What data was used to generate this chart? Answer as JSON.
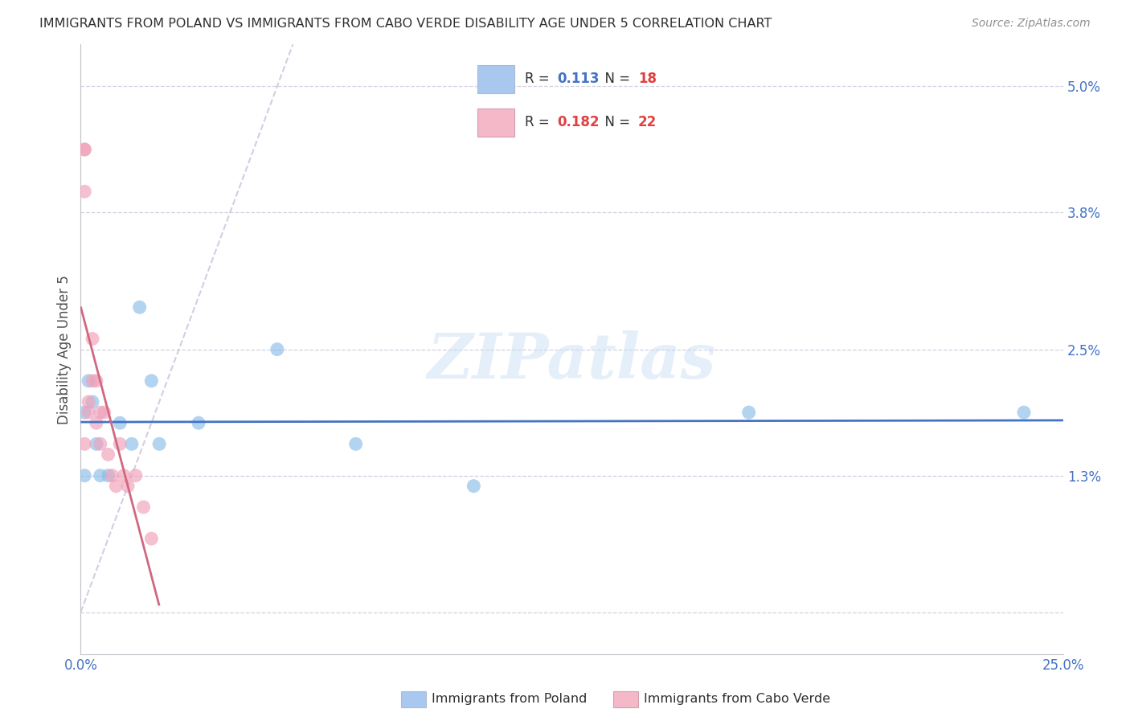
{
  "title": "IMMIGRANTS FROM POLAND VS IMMIGRANTS FROM CABO VERDE DISABILITY AGE UNDER 5 CORRELATION CHART",
  "source": "Source: ZipAtlas.com",
  "ylabel": "Disability Age Under 5",
  "xlabel_poland": "Immigrants from Poland",
  "xlabel_caboverde": "Immigrants from Cabo Verde",
  "xlim": [
    0.0,
    0.25
  ],
  "ylim": [
    -0.004,
    0.054
  ],
  "ytick_vals": [
    0.0,
    0.013,
    0.025,
    0.038,
    0.05
  ],
  "ytick_labels": [
    "",
    "1.3%",
    "2.5%",
    "3.8%",
    "5.0%"
  ],
  "xtick_vals": [
    0.0,
    0.05,
    0.1,
    0.15,
    0.2,
    0.25
  ],
  "xtick_labels": [
    "0.0%",
    "",
    "",
    "",
    "",
    "25.0%"
  ],
  "watermark": "ZIPatlas",
  "R_poland": 0.113,
  "N_poland": 18,
  "R_caboverde": 0.182,
  "N_caboverde": 22,
  "legend_poland_color": "#a8c8f0",
  "legend_caboverde_color": "#f4b8c8",
  "poland_color": "#8abde8",
  "caboverde_color": "#f0a0b8",
  "trendline_poland_color": "#4472c4",
  "trendline_caboverde_color": "#d06880",
  "diagonal_color": "#d0c8e0",
  "poland_x": [
    0.001,
    0.001,
    0.002,
    0.003,
    0.004,
    0.005,
    0.007,
    0.01,
    0.013,
    0.015,
    0.018,
    0.02,
    0.03,
    0.05,
    0.07,
    0.1,
    0.17,
    0.24
  ],
  "poland_y": [
    0.013,
    0.019,
    0.022,
    0.02,
    0.016,
    0.013,
    0.013,
    0.018,
    0.016,
    0.029,
    0.022,
    0.016,
    0.018,
    0.025,
    0.016,
    0.012,
    0.019,
    0.019
  ],
  "caboverde_x": [
    0.001,
    0.001,
    0.001,
    0.001,
    0.002,
    0.002,
    0.003,
    0.003,
    0.004,
    0.004,
    0.005,
    0.005,
    0.006,
    0.007,
    0.008,
    0.009,
    0.01,
    0.011,
    0.012,
    0.014,
    0.016,
    0.018
  ],
  "caboverde_y": [
    0.044,
    0.044,
    0.04,
    0.016,
    0.019,
    0.02,
    0.026,
    0.022,
    0.022,
    0.018,
    0.019,
    0.016,
    0.019,
    0.015,
    0.013,
    0.012,
    0.016,
    0.013,
    0.012,
    0.013,
    0.01,
    0.007
  ],
  "background_color": "#ffffff",
  "grid_color": "#d0d0e0",
  "title_color": "#303030",
  "axis_label_color": "#505050",
  "tick_color": "#4472c4"
}
